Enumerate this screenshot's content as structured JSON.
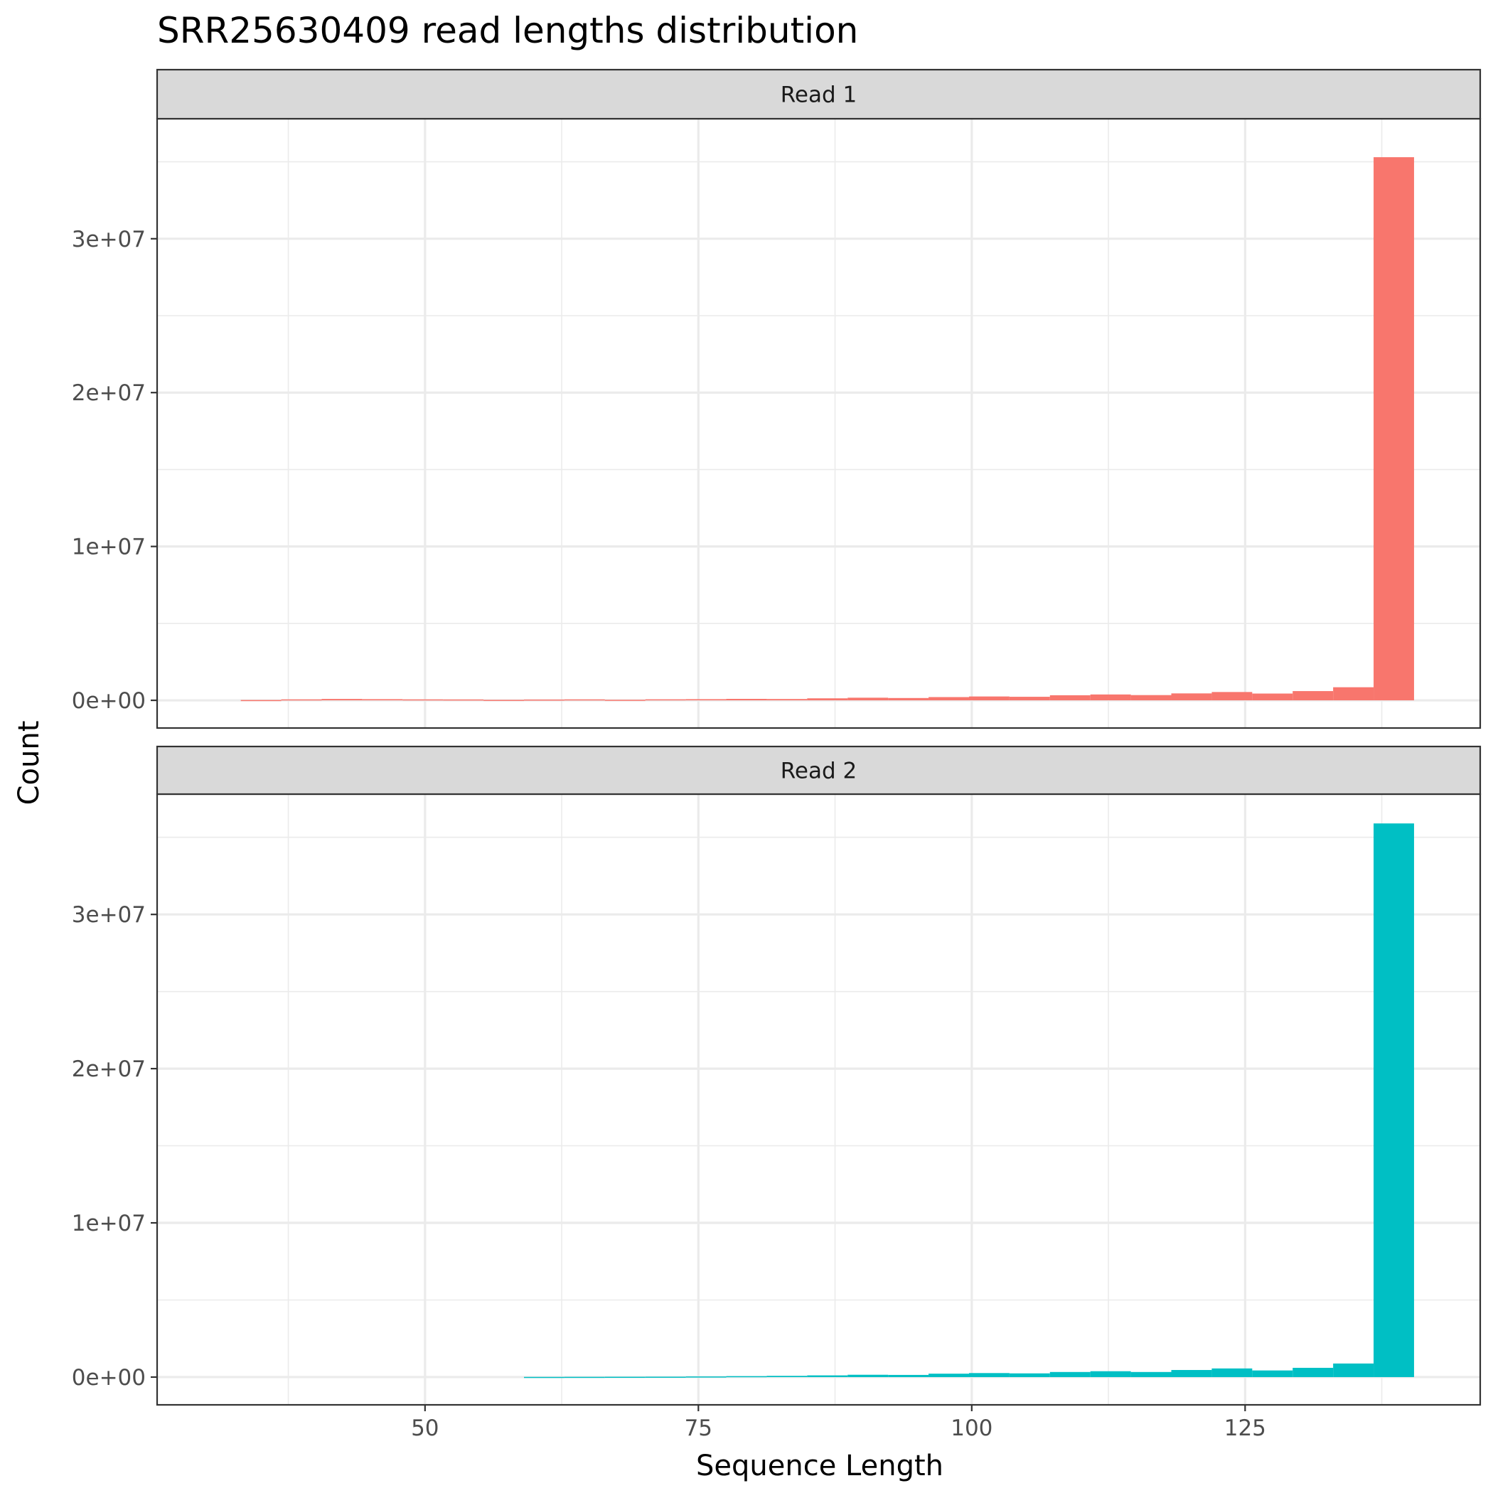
{
  "chart_data": {
    "type": "bar",
    "title": "SRR25630409 read lengths distribution",
    "xlabel": "Sequence Length",
    "ylabel": "Count",
    "xlim": [
      25.5,
      146.5
    ],
    "ylim": [
      -1800000,
      37800000
    ],
    "x_ticks": [
      {
        "value": 50,
        "label": "50"
      },
      {
        "value": 75,
        "label": "75"
      },
      {
        "value": 100,
        "label": "100"
      },
      {
        "value": 125,
        "label": "125"
      }
    ],
    "y_ticks": [
      {
        "value": 0,
        "label": "0e+00"
      },
      {
        "value": 10000000,
        "label": "1e+07"
      },
      {
        "value": 20000000,
        "label": "2e+07"
      },
      {
        "value": 30000000,
        "label": "3e+07"
      }
    ],
    "bin_width": 3.7,
    "grid": true,
    "legend": "none",
    "panels": [
      {
        "name": "Read 1",
        "color": "#F8766D",
        "x": [
          35.0,
          38.7,
          42.4,
          46.1,
          49.8,
          53.5,
          57.2,
          60.9,
          64.6,
          68.3,
          72.0,
          75.7,
          79.4,
          83.1,
          86.8,
          90.5,
          94.2,
          97.9,
          101.6,
          105.3,
          109.0,
          112.7,
          116.4,
          120.1,
          123.8,
          127.5,
          131.2,
          134.9,
          138.6
        ],
        "values": [
          20000,
          60000,
          90000,
          75000,
          60000,
          55000,
          30000,
          50000,
          60000,
          35000,
          65000,
          75000,
          95000,
          85000,
          130000,
          170000,
          150000,
          210000,
          250000,
          230000,
          330000,
          380000,
          340000,
          450000,
          540000,
          440000,
          600000,
          850000,
          35300000
        ]
      },
      {
        "name": "Read 2",
        "color": "#00BFC4",
        "x": [
          60.9,
          64.6,
          68.3,
          72.0,
          75.7,
          79.4,
          83.1,
          86.8,
          90.5,
          94.2,
          97.9,
          101.6,
          105.3,
          109.0,
          112.7,
          116.4,
          120.1,
          123.8,
          127.5,
          131.2,
          134.9,
          138.6
        ],
        "values": [
          10000,
          15000,
          20000,
          25000,
          40000,
          60000,
          80000,
          110000,
          150000,
          140000,
          220000,
          260000,
          240000,
          330000,
          380000,
          330000,
          460000,
          560000,
          430000,
          600000,
          880000,
          35900000
        ]
      }
    ]
  }
}
